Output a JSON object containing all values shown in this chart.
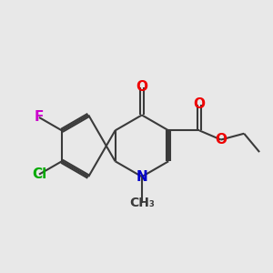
{
  "background_color": "#e8e8e8",
  "bond_color": "#3a3a3a",
  "bond_width": 1.5,
  "atom_colors": {
    "O": "#ee0000",
    "N": "#0000cc",
    "Cl": "#00aa00",
    "F": "#cc00cc",
    "C": "#3a3a3a"
  },
  "font_size": 11
}
